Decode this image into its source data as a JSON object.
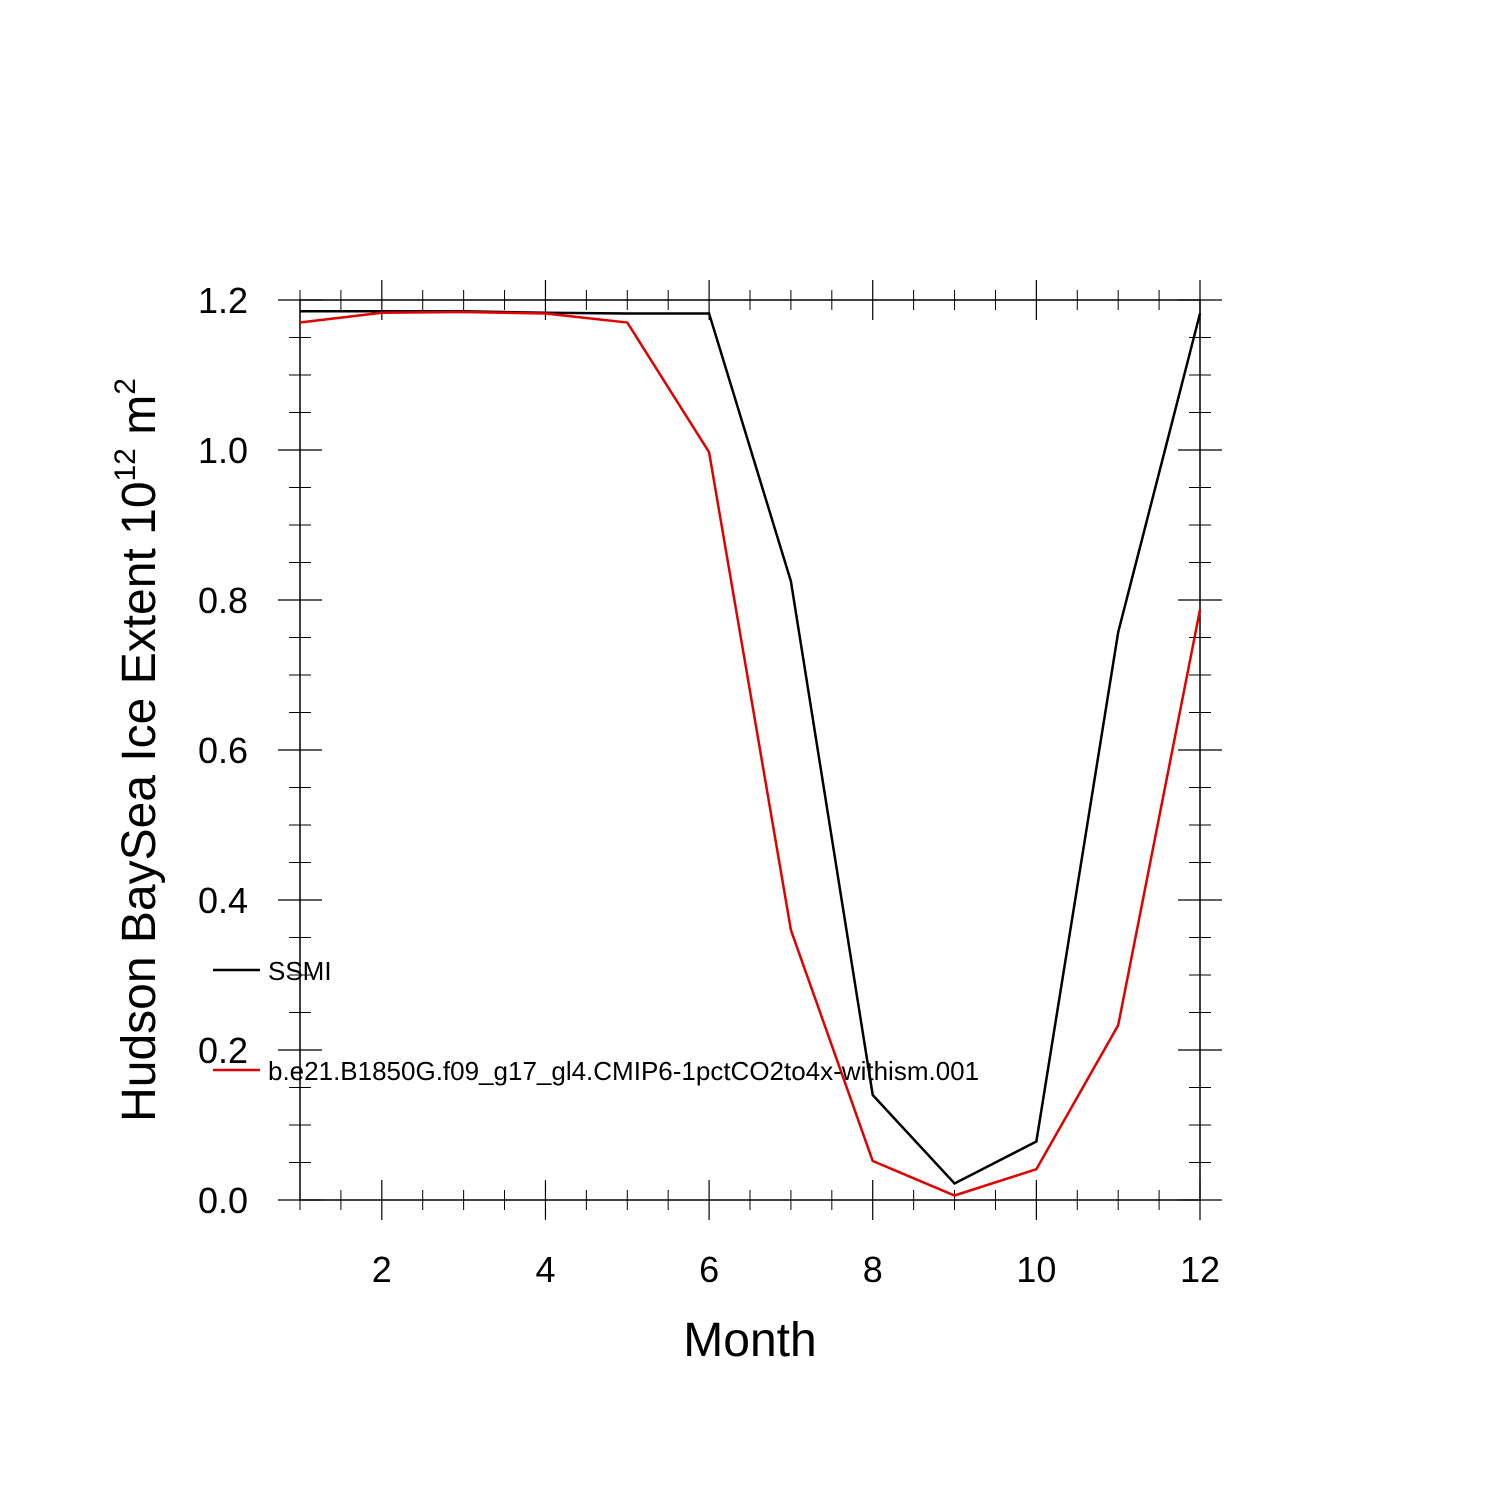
{
  "chart_data": {
    "type": "line",
    "xlabel": "Month",
    "ylabel": {
      "main": "Hudson BaySea Ice Extent 10",
      "sup": "12",
      "unit": " m",
      "unit_sup": "2"
    },
    "xlim": [
      1,
      12
    ],
    "ylim": [
      0,
      1.2
    ],
    "xticks": [
      2,
      4,
      6,
      8,
      10,
      12
    ],
    "xtick_labels": [
      "2",
      "4",
      "6",
      "8",
      "10",
      "12"
    ],
    "yticks": [
      0.0,
      0.2,
      0.4,
      0.6,
      0.8,
      1.0,
      1.2
    ],
    "ytick_labels": [
      "0.0",
      "0.2",
      "0.4",
      "0.6",
      "0.8",
      "1.0",
      "1.2"
    ],
    "grid": false,
    "legend_position": "left-middle",
    "x": [
      1,
      2,
      3,
      4,
      5,
      6,
      7,
      8,
      9,
      10,
      11,
      12
    ],
    "series": [
      {
        "name": "SSMI",
        "color": "#000000",
        "values": [
          1.185,
          1.185,
          1.185,
          1.183,
          1.182,
          1.182,
          0.825,
          0.14,
          0.022,
          0.078,
          0.757,
          1.182
        ]
      },
      {
        "name": "b.e21.B1850G.f09_g17_gl4.CMIP6-1pctCO2to4x-withism.001",
        "color": "#e00000",
        "values": [
          1.17,
          1.183,
          1.184,
          1.182,
          1.17,
          0.997,
          0.36,
          0.052,
          0.006,
          0.041,
          0.233,
          0.787
        ]
      }
    ]
  }
}
